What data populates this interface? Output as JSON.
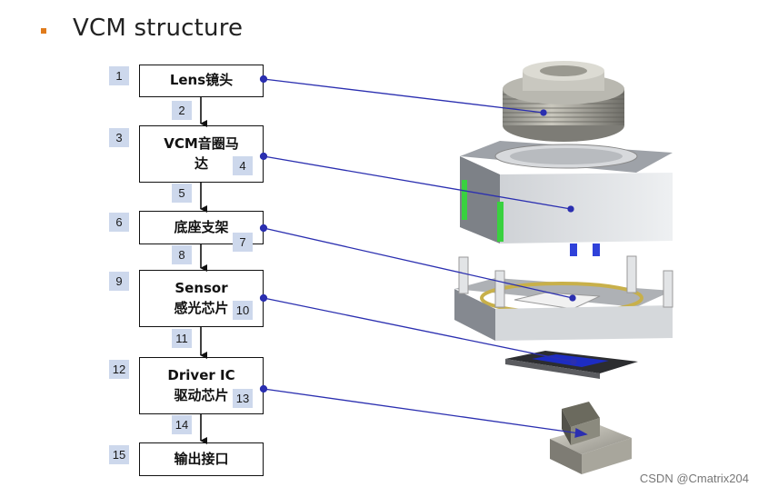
{
  "title": "VCM structure",
  "boxes": [
    {
      "lines": [
        "Lens镜头"
      ]
    },
    {
      "lines": [
        "VCM音圈马",
        "达"
      ]
    },
    {
      "lines": [
        "底座支架"
      ]
    },
    {
      "lines": [
        "Sensor",
        "感光芯片"
      ]
    },
    {
      "lines": [
        "Driver IC",
        "驱动芯片"
      ]
    },
    {
      "lines": [
        "输出接口"
      ]
    }
  ],
  "badges": [
    "1",
    "2",
    "3",
    "4",
    "5",
    "6",
    "7",
    "8",
    "9",
    "10",
    "11",
    "12",
    "13",
    "14",
    "15"
  ],
  "footer": "CSDN @Cmatrix204",
  "colors": {
    "connector": "#2b2fb0",
    "badge_bg": "#cdd8ec",
    "bullet": "#e07b1c"
  }
}
